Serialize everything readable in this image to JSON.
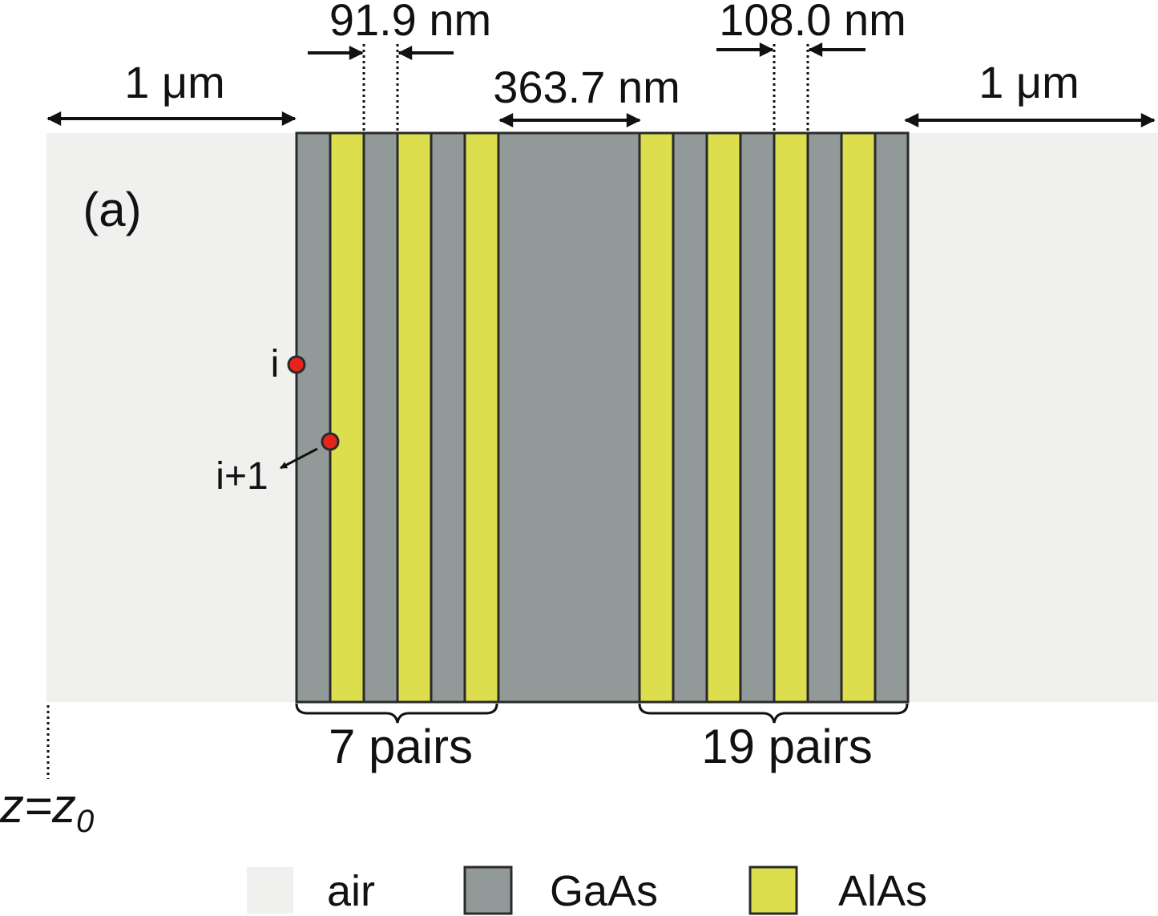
{
  "panel_label": "(a)",
  "dimensions": {
    "air_left": "1 μm",
    "air_right": "1 μm",
    "gaas_thickness": "91.9 nm",
    "alas_thickness": "108.0 nm",
    "cavity": "363.7 nm"
  },
  "stack": {
    "left_pairs_label": "7 pairs",
    "right_pairs_label": "19 pairs"
  },
  "points": {
    "i_label": "i",
    "i_plus_1_label": "i+1"
  },
  "z_label": {
    "base": "z=z",
    "subscript": "0"
  },
  "legend": [
    {
      "label": "air",
      "color": "#f0f0ef"
    },
    {
      "label": "GaAs",
      "color": "#919a98"
    },
    {
      "label": "AlAs",
      "color": "#dcde4e"
    }
  ],
  "colors": {
    "air": "#f0f0ef",
    "gaas": "#919a98",
    "alas": "#dcde4e",
    "point": "#e8231e",
    "outline": "#2a2a2a"
  }
}
